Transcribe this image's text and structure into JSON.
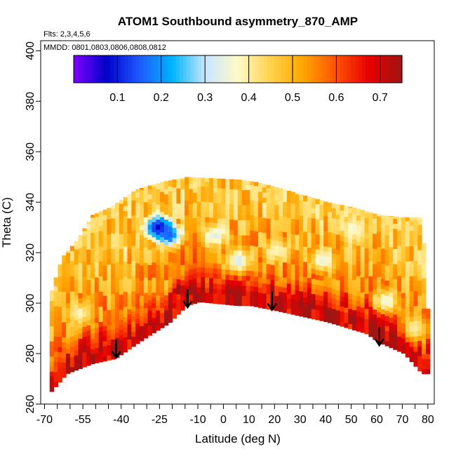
{
  "chart_data": {
    "type": "heatmap",
    "title": "ATOM1 Southbound asymmetry_870_AMP",
    "note_flights": "Flts: 2,3,4,5,6",
    "note_dates": "MMDD: 0801,0803,0806,0808,0812",
    "xlabel": "Latitude (deg N)",
    "ylabel": "Theta (C)",
    "xlim": [
      -71.5,
      82.5
    ],
    "ylim": [
      260,
      404
    ],
    "x_ticks": [
      -70,
      -55,
      -40,
      -25,
      -10,
      0,
      10,
      20,
      30,
      40,
      50,
      60,
      70,
      80
    ],
    "x_tick_labels": [
      "-70",
      "-55",
      "-40",
      "-25",
      "-10",
      "0",
      "10",
      "20",
      "30",
      "40",
      "50",
      "60",
      "70",
      "80"
    ],
    "x_minor_ticks": [
      -65,
      -60,
      -50,
      -45,
      -35,
      -30,
      -20,
      -15,
      -5,
      5,
      15,
      25,
      35,
      45,
      55,
      65,
      75
    ],
    "y_ticks": [
      260,
      280,
      300,
      320,
      340,
      360,
      380,
      400
    ],
    "y_tick_labels": [
      "260",
      "280",
      "300",
      "320",
      "340",
      "360",
      "380",
      "400"
    ],
    "colorbar": {
      "range": [
        0.0,
        0.75
      ],
      "ticks": [
        0.1,
        0.2,
        0.3,
        0.4,
        0.5,
        0.6,
        0.7
      ],
      "tick_labels": [
        "0.1",
        "0.2",
        "0.3",
        "0.4",
        "0.5",
        "0.6",
        "0.7"
      ],
      "colors": [
        "#7f00ff",
        "#0000c8",
        "#1e5aff",
        "#00b4ff",
        "#c8e6ff",
        "#fffac8",
        "#ffd24b",
        "#ffa500",
        "#ff5000",
        "#e60000",
        "#a01414"
      ]
    },
    "field_bottom_boundary": [
      [
        -68,
        265
      ],
      [
        -62,
        272
      ],
      [
        -52,
        276
      ],
      [
        -43,
        278
      ],
      [
        -30,
        287
      ],
      [
        -22,
        292
      ],
      [
        -15,
        299
      ],
      [
        -10,
        300.5
      ],
      [
        -5,
        300
      ],
      [
        5,
        299
      ],
      [
        10,
        299
      ],
      [
        20,
        297
      ],
      [
        40,
        292.5
      ],
      [
        55,
        288
      ],
      [
        60,
        284.5
      ],
      [
        70,
        280
      ],
      [
        77,
        272
      ]
    ],
    "field_top_boundary": [
      [
        -68,
        305
      ],
      [
        -64,
        318
      ],
      [
        -58,
        325
      ],
      [
        -52,
        335
      ],
      [
        -45,
        338
      ],
      [
        -35,
        345
      ],
      [
        -25,
        348
      ],
      [
        -15,
        350
      ],
      [
        -5,
        349.5
      ],
      [
        5,
        349
      ],
      [
        12,
        348
      ],
      [
        20,
        346
      ],
      [
        30,
        343
      ],
      [
        40,
        340
      ],
      [
        50,
        338
      ],
      [
        60,
        335
      ],
      [
        70,
        334
      ],
      [
        77,
        334
      ],
      [
        79,
        300
      ],
      [
        80,
        289
      ]
    ],
    "field_colored_bands": [
      {
        "theta_range": [
          262,
          300
        ],
        "value": 0.7,
        "note": "low theta near ground: red"
      },
      {
        "theta_range": [
          296,
          308
        ],
        "value": 0.68,
        "note": "tropical band above surface: red"
      },
      {
        "theta_range": [
          305,
          350
        ],
        "value": 0.5,
        "note": "mixed yellow/orange with blue patches"
      }
    ],
    "field_low_patches": [
      {
        "lat": -26,
        "theta": 329,
        "value": 0.05
      },
      {
        "lat": -22,
        "theta": 326,
        "value": 0.15
      },
      {
        "lat": -4,
        "theta": 326,
        "value": 0.33
      },
      {
        "lat": 5,
        "theta": 316,
        "value": 0.32
      },
      {
        "lat": 20,
        "theta": 320,
        "value": 0.38
      },
      {
        "lat": 38,
        "theta": 316,
        "value": 0.35
      },
      {
        "lat": 63,
        "theta": 300,
        "value": 0.35
      },
      {
        "lat": 74,
        "theta": 289,
        "value": 0.4
      },
      {
        "lat": -57,
        "theta": 295,
        "value": 0.38
      },
      {
        "lat": 50,
        "theta": 329,
        "value": 0.36
      }
    ],
    "tropopause_arrows": [
      {
        "lat": -42,
        "theta": 280
      },
      {
        "lat": -14,
        "theta": 300
      },
      {
        "lat": 19,
        "theta": 299
      },
      {
        "lat": 61,
        "theta": 285
      }
    ]
  }
}
